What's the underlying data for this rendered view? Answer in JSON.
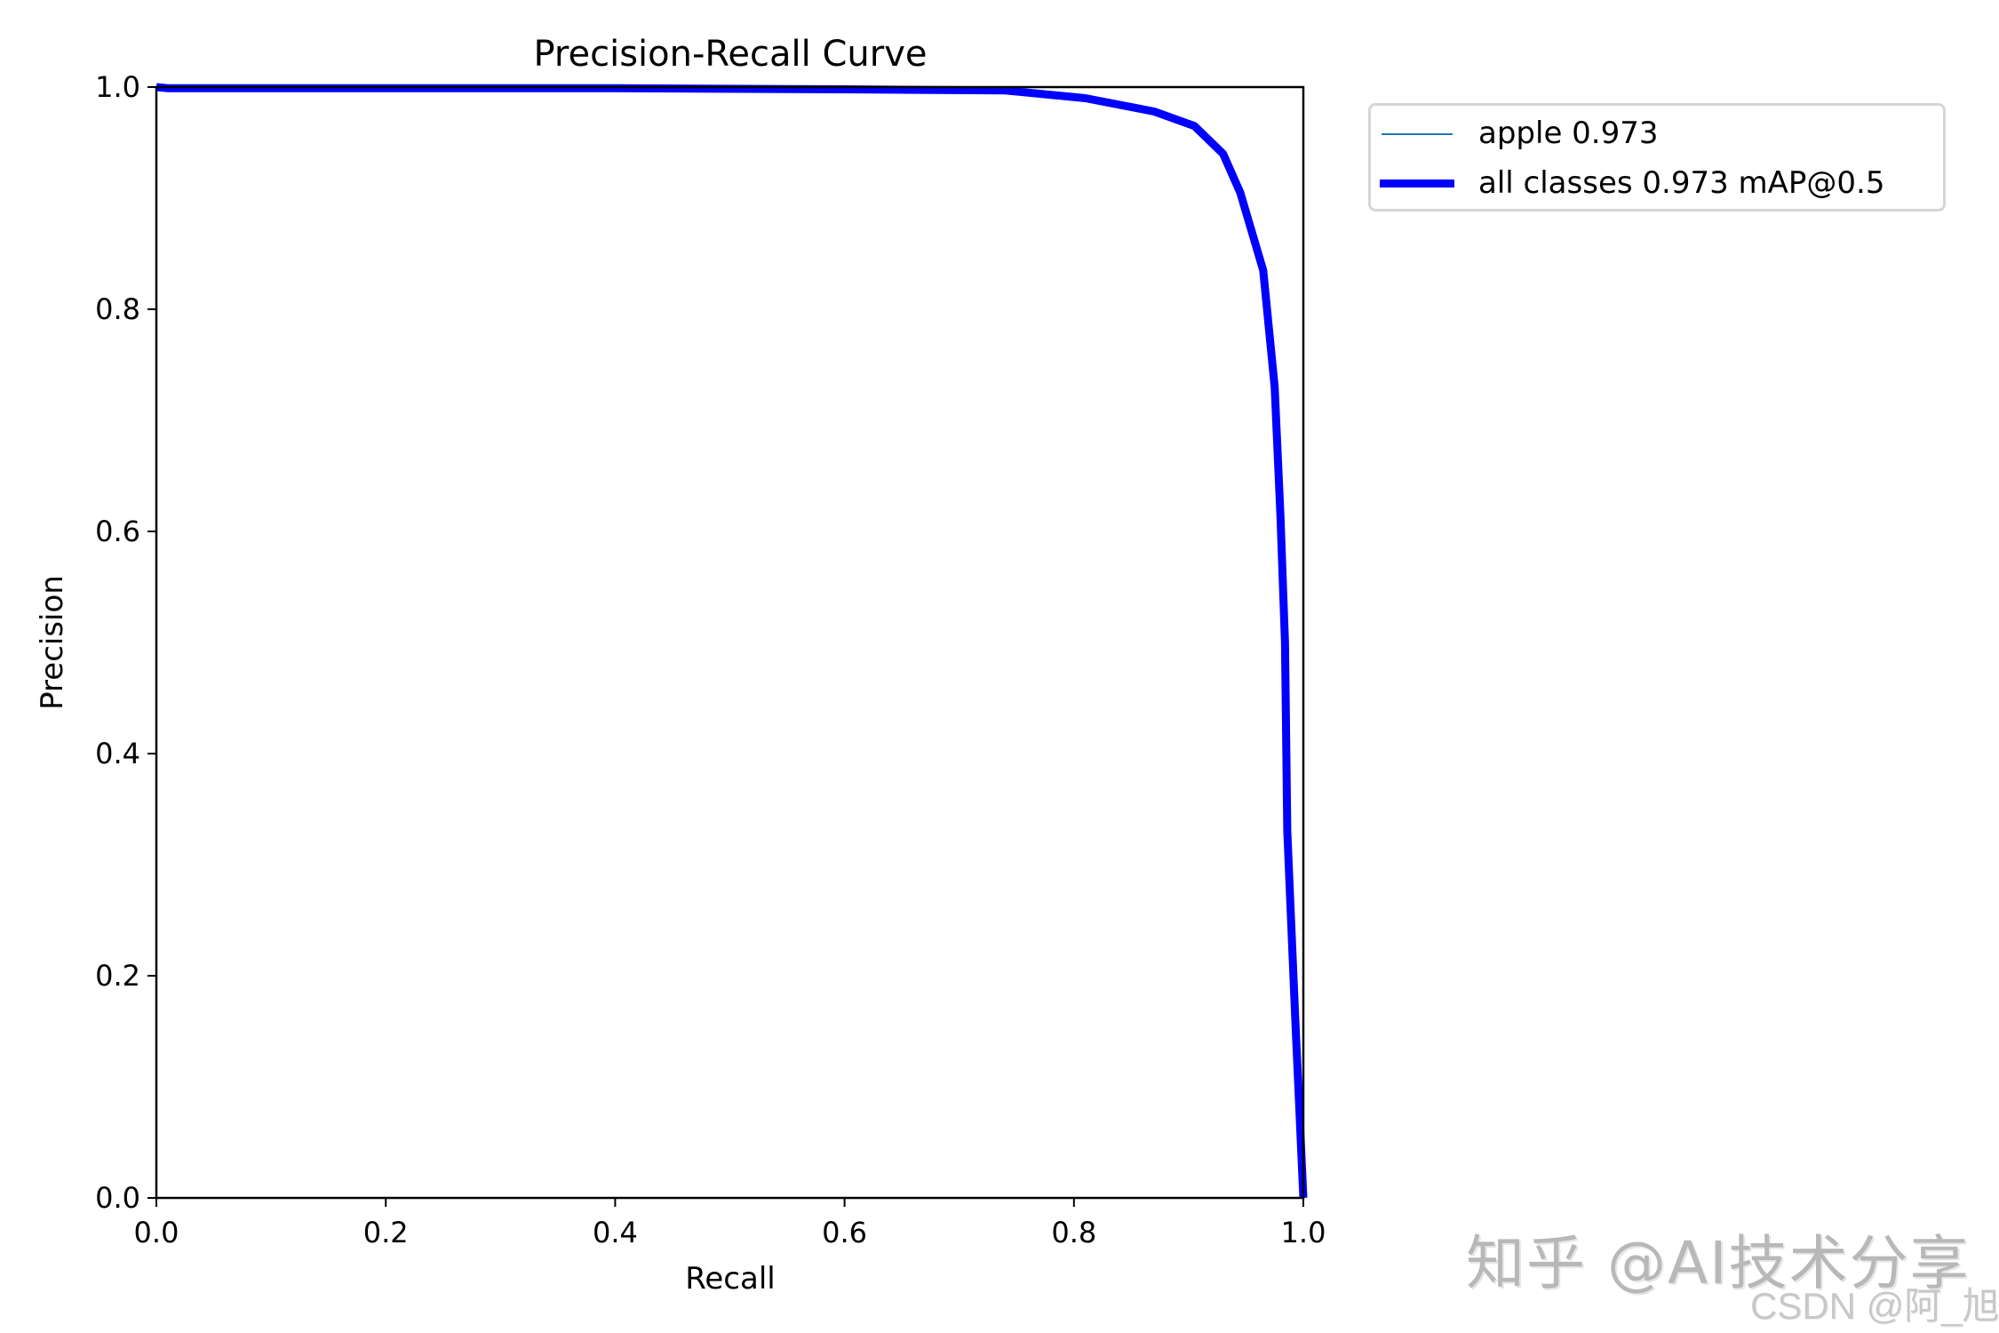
{
  "chart_data": {
    "type": "line",
    "title": "Precision-Recall Curve",
    "xlabel": "Recall",
    "ylabel": "Precision",
    "xlim": [
      0.0,
      1.0
    ],
    "ylim": [
      0.0,
      1.0
    ],
    "xticks": [
      "0.0",
      "0.2",
      "0.4",
      "0.6",
      "0.8",
      "1.0"
    ],
    "yticks": [
      "0.0",
      "0.2",
      "0.4",
      "0.6",
      "0.8",
      "1.0"
    ],
    "grid": false,
    "legend_position": "outside upper right",
    "series": [
      {
        "name": "apple 0.973",
        "color": "#1f77b4",
        "linewidth": 1,
        "x": [
          0.0,
          0.01,
          0.2,
          0.4,
          0.6,
          0.74,
          0.81,
          0.87,
          0.905,
          0.93,
          0.945,
          0.965,
          0.975,
          0.98,
          0.984,
          0.986,
          0.993,
          1.0
        ],
        "y": [
          1.0,
          0.999,
          0.999,
          0.999,
          0.998,
          0.997,
          0.99,
          0.978,
          0.965,
          0.94,
          0.905,
          0.835,
          0.73,
          0.615,
          0.5,
          0.33,
          0.16,
          0.0
        ]
      },
      {
        "name": "all classes 0.973 mAP@0.5",
        "color": "#0000ff",
        "linewidth": 3,
        "x": [
          0.0,
          0.01,
          0.2,
          0.4,
          0.6,
          0.74,
          0.81,
          0.87,
          0.905,
          0.93,
          0.945,
          0.965,
          0.975,
          0.98,
          0.984,
          0.986,
          0.993,
          1.0
        ],
        "y": [
          1.0,
          0.999,
          0.999,
          0.999,
          0.998,
          0.997,
          0.99,
          0.978,
          0.965,
          0.94,
          0.905,
          0.835,
          0.73,
          0.615,
          0.5,
          0.33,
          0.16,
          0.0
        ]
      }
    ]
  },
  "legend": {
    "items": [
      {
        "label": "apple 0.973",
        "color": "#1f77b4"
      },
      {
        "label": "all classes 0.973 mAP@0.5",
        "color": "#0000ff"
      }
    ]
  },
  "watermark": {
    "line1": "知乎 @AI技术分享",
    "line2": "CSDN @阿_旭"
  }
}
